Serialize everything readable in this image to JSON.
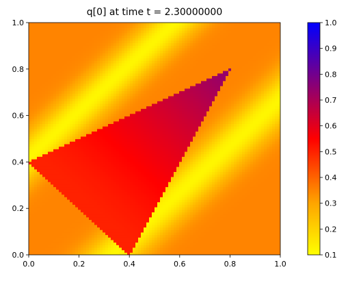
{
  "chart_data": {
    "type": "heatmap",
    "title_prefix": "q[0] at time t =",
    "title_value": "2.30000000",
    "xlabel": "",
    "ylabel": "",
    "xlim": [
      0.0,
      1.0
    ],
    "ylim": [
      0.0,
      1.0
    ],
    "x_ticks": [
      "0.0",
      "0.2",
      "0.4",
      "0.6",
      "0.8",
      "1.0"
    ],
    "y_ticks": [
      "0.0",
      "0.2",
      "0.4",
      "0.6",
      "0.8",
      "1.0"
    ],
    "colorbar": {
      "range": [
        0.1,
        1.0
      ],
      "ticks": [
        "0.1",
        "0.2",
        "0.3",
        "0.4",
        "0.5",
        "0.6",
        "0.7",
        "0.8",
        "0.9",
        "1.0"
      ],
      "colormap": [
        {
          "value": 0.1,
          "color": "#ffff00"
        },
        {
          "value": 0.3,
          "color": "#ffa500"
        },
        {
          "value": 0.55,
          "color": "#ff0000"
        },
        {
          "value": 1.0,
          "color": "#0000ff"
        }
      ]
    },
    "field_description": "background ~0.35, yellow bands ~0.15 along diagonal strips, triangular region values rising from ~0.5 (lower-left) to ~0.7 (tip near x=0.8,y=0.8)",
    "background_value": 0.35,
    "band_value": 0.12,
    "triangle_vertices": [
      [
        0.0,
        0.4
      ],
      [
        0.4,
        0.0
      ],
      [
        0.8,
        0.8
      ]
    ],
    "triangle_value_range": [
      0.5,
      0.75
    ]
  }
}
